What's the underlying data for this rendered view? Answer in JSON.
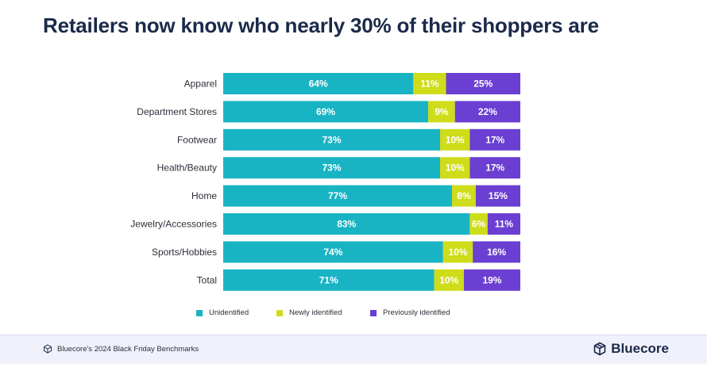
{
  "title": "Retailers now know who nearly 30% of their shoppers are",
  "chart_data": {
    "type": "bar",
    "orientation": "horizontal",
    "stacked": true,
    "categories": [
      "Apparel",
      "Department Stores",
      "Footwear",
      "Health/Beauty",
      "Home",
      "Jewelry/Accessories",
      "Sports/Hobbies",
      "Total"
    ],
    "series": [
      {
        "name": "Unidentified",
        "color": "#19b4c4",
        "values": [
          64,
          69,
          73,
          73,
          77,
          83,
          74,
          71
        ],
        "labels": [
          "64%",
          "69%",
          "73%",
          "73%",
          "77%",
          "83%",
          "74%",
          "71%"
        ]
      },
      {
        "name": "Newly identified",
        "color": "#cfdc1a",
        "values": [
          11,
          9,
          10,
          10,
          8,
          6,
          10,
          10
        ],
        "labels": [
          "11%",
          "9%",
          "10%",
          "10%",
          "8%",
          "6%",
          "10%",
          "10%"
        ]
      },
      {
        "name": "Previously identified",
        "color": "#6a3fd1",
        "values": [
          25,
          22,
          17,
          17,
          15,
          11,
          16,
          19
        ],
        "labels": [
          "25%",
          "22%",
          "17%",
          "17%",
          "15%",
          "11%",
          "16%",
          "19%"
        ]
      }
    ],
    "xlim": [
      0,
      100
    ],
    "legend_position": "bottom-center"
  },
  "footer": {
    "source": "Bluecore's 2024 Black Friday Benchmarks",
    "source_icon": "cube-icon",
    "brand": "Bluecore",
    "brand_icon": "bluecore-logo-icon"
  }
}
